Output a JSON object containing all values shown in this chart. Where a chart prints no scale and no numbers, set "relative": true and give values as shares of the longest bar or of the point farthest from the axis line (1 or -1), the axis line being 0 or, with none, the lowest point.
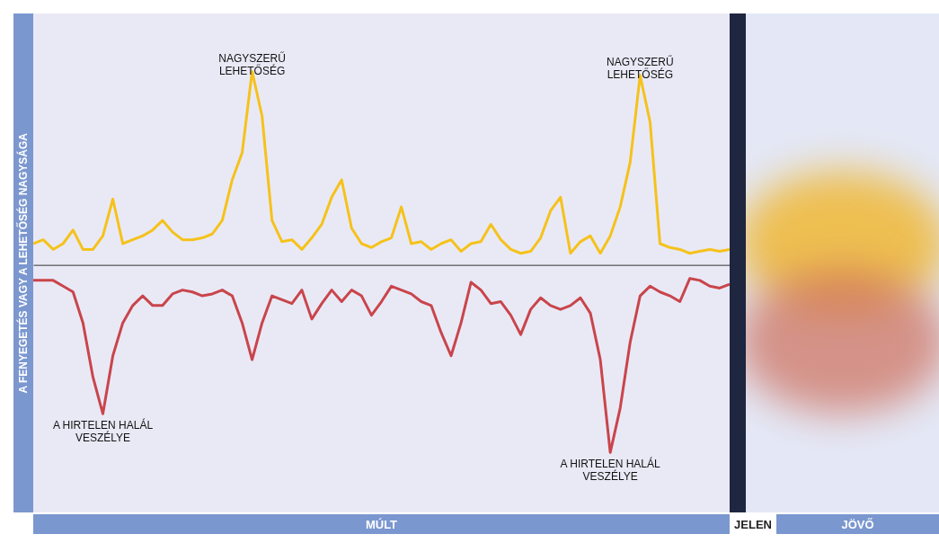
{
  "chart_data": {
    "type": "line",
    "relative": true,
    "ylabel": "A FENYEGETÉS VAGY A LEHETŐSÉG NAGYSÁGA",
    "categories": [
      null,
      null,
      null,
      null,
      null,
      null,
      null,
      null,
      null,
      null,
      null,
      null,
      null,
      null,
      null,
      null,
      null,
      null,
      null,
      null,
      null,
      null,
      null,
      null,
      null,
      null,
      null,
      null,
      null,
      null,
      null,
      null,
      null,
      null,
      null,
      null,
      null,
      null,
      null,
      null,
      null,
      null,
      null,
      null,
      null,
      null,
      null,
      null,
      null,
      null,
      null,
      null,
      null,
      null,
      null,
      null,
      null,
      null,
      null,
      null,
      null,
      null,
      null,
      null,
      null,
      null,
      null,
      null,
      null,
      null,
      null
    ],
    "series": [
      {
        "color": "#f5c21b",
        "values": [
          0.11,
          0.13,
          0.08,
          0.11,
          0.18,
          0.08,
          0.08,
          0.15,
          0.34,
          0.11,
          0.13,
          0.15,
          0.18,
          0.23,
          0.17,
          0.13,
          0.13,
          0.14,
          0.16,
          0.23,
          0.44,
          0.58,
          1,
          0.77,
          0.23,
          0.12,
          0.13,
          0.08,
          0.14,
          0.21,
          0.35,
          0.44,
          0.19,
          0.11,
          0.09,
          0.12,
          0.14,
          0.3,
          0.11,
          0.12,
          0.08,
          0.11,
          0.13,
          0.07,
          0.11,
          0.12,
          0.21,
          0.13,
          0.08,
          0.06,
          0.07,
          0.14,
          0.28,
          0.35,
          0.06,
          0.12,
          0.15,
          0.06,
          0.15,
          0.3,
          0.53,
          0.98,
          0.74,
          0.11,
          0.09,
          0.08,
          0.06,
          0.07,
          0.08,
          0.07,
          0.08
        ]
      },
      {
        "color": "#c9454b",
        "values": [
          -0.08,
          -0.08,
          -0.08,
          -0.11,
          -0.14,
          -0.3,
          -0.58,
          -0.77,
          -0.47,
          -0.3,
          -0.21,
          -0.16,
          -0.21,
          -0.21,
          -0.15,
          -0.13,
          -0.14,
          -0.16,
          -0.15,
          -0.13,
          -0.16,
          -0.3,
          -0.49,
          -0.3,
          -0.16,
          -0.18,
          -0.2,
          -0.13,
          -0.28,
          -0.2,
          -0.13,
          -0.19,
          -0.13,
          -0.16,
          -0.26,
          -0.19,
          -0.11,
          -0.13,
          -0.15,
          -0.19,
          -0.21,
          -0.35,
          -0.47,
          -0.3,
          -0.09,
          -0.13,
          -0.2,
          -0.19,
          -0.26,
          -0.36,
          -0.23,
          -0.17,
          -0.21,
          -0.23,
          -0.21,
          -0.17,
          -0.25,
          -0.49,
          -0.97,
          -0.74,
          -0.4,
          -0.16,
          -0.11,
          -0.14,
          -0.16,
          -0.19,
          -0.07,
          -0.08,
          -0.11,
          -0.12,
          -0.1
        ]
      }
    ],
    "annotations": [
      {
        "text": "NAGYSZERŰ\nLEHETŐSÉG",
        "y": 1
      },
      {
        "text": "NAGYSZERŰ\nLEHETŐSÉG",
        "y": 0.98
      },
      {
        "text": "A HIRTELEN HALÁL\nVESZÉLYE",
        "y": -0.77
      },
      {
        "text": "A HIRTELEN HALÁL\nVESZÉLYE",
        "y": -0.97
      },
      "MÚLT",
      "JELEN",
      "JÖVŐ"
    ]
  }
}
